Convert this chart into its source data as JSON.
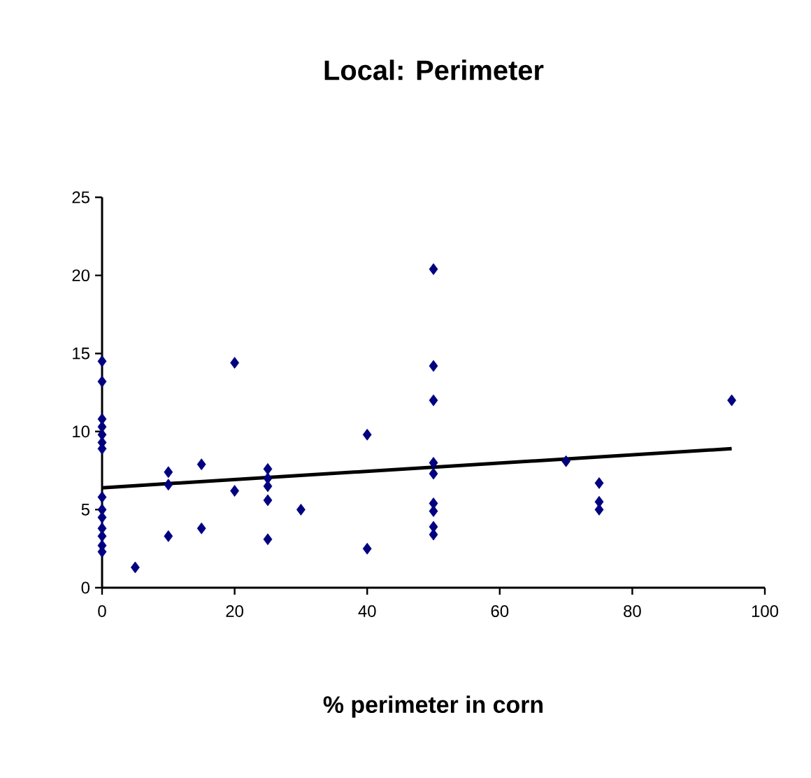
{
  "chart_data": {
    "type": "scatter",
    "title": "Local: Perimeter",
    "xlabel": "% perimeter in corn",
    "xlim": [
      0,
      100
    ],
    "xticks": [
      0,
      20,
      40,
      60,
      80,
      100
    ],
    "ylim": [
      0,
      25
    ],
    "yticks": [
      0,
      5,
      10,
      15,
      20,
      25
    ],
    "marker": "diamond",
    "series": [
      {
        "color": "#000080",
        "x": [
          0,
          0,
          0,
          0,
          0,
          0,
          0,
          0,
          0,
          0,
          0,
          0,
          0,
          0,
          5,
          10,
          10,
          10,
          15,
          15,
          20,
          20,
          25,
          25,
          25,
          25,
          25,
          30,
          40,
          40,
          50,
          50,
          50,
          50,
          50,
          50,
          50,
          50,
          50,
          70,
          75,
          75,
          75,
          95
        ],
        "values": [
          14.5,
          13.2,
          10.8,
          10.3,
          9.8,
          9.3,
          8.9,
          5.8,
          5.0,
          4.5,
          3.8,
          3.3,
          2.7,
          2.3,
          1.3,
          7.4,
          6.6,
          3.3,
          7.9,
          3.8,
          14.4,
          6.2,
          7.6,
          7.0,
          6.5,
          5.6,
          3.1,
          5.0,
          9.8,
          2.5,
          20.4,
          14.2,
          12.0,
          8.0,
          7.3,
          5.4,
          4.9,
          3.9,
          3.4,
          8.1,
          6.7,
          5.5,
          5.0,
          12.0
        ]
      },
      {
        "type": "line",
        "color": "#000000",
        "marker": "none",
        "line_style": "solid",
        "x": [
          0,
          95
        ],
        "values": [
          6.4,
          8.9
        ]
      }
    ]
  }
}
